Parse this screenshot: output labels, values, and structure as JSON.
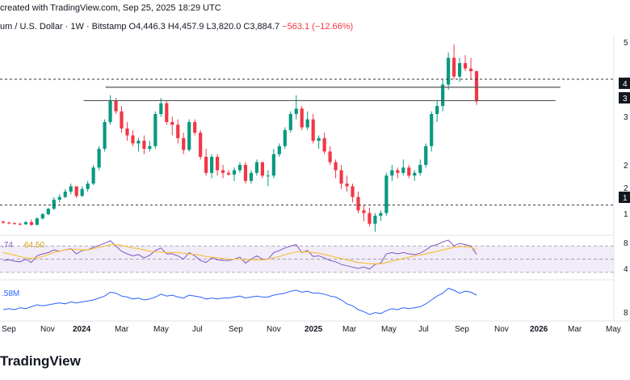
{
  "header": {
    "created_text": "created with TradingView.com, Sep 25, 2025 18:29 UTC"
  },
  "symbol": {
    "name": "um / U.S. Dollar · 1W · Bitstamp",
    "ohlc_prefix": "O4,446.3 H4,457.9 L3,820.0 C3,884.7",
    "change": "−563.1 (−12.66%)"
  },
  "footer": {
    "logo_text": "TradingView"
  },
  "colors": {
    "up": "#089981",
    "down": "#f23645",
    "rsi_line": "#7e57c2",
    "rsi_ma": "#f7c245",
    "rsi_band": "#ede7f6",
    "obv_line": "#2962ff",
    "resistance": "#555555"
  },
  "price_axis": {
    "labels": [
      "5",
      "4",
      "3",
      "3",
      "2",
      "2",
      "1",
      "1"
    ]
  },
  "rsi_axis": {
    "labels": [
      "8",
      "4"
    ]
  },
  "obv_axis": {
    "labels": [
      "8"
    ]
  },
  "indicators": {
    "rsi_value": ".74",
    "rsi_ma_value": "64.50",
    "obv_value": ".58M"
  },
  "chart_data": {
    "type": "candlestick",
    "interval": "1W",
    "x_axis_labels": [
      "Sep",
      "Nov",
      "2024",
      "Mar",
      "May",
      "Jul",
      "Sep",
      "Nov",
      "2025",
      "Mar",
      "May",
      "Jul",
      "Sep",
      "Nov",
      "2026",
      "Mar",
      "May"
    ],
    "bold_labels": [
      "2024",
      "2025",
      "2026"
    ],
    "ylim": [
      1400,
      5100
    ],
    "candles": [
      [
        1640,
        1660,
        1600,
        1620
      ],
      [
        1620,
        1640,
        1590,
        1610
      ],
      [
        1610,
        1630,
        1580,
        1600
      ],
      [
        1600,
        1620,
        1570,
        1590
      ],
      [
        1590,
        1650,
        1580,
        1630
      ],
      [
        1630,
        1680,
        1560,
        1580
      ],
      [
        1580,
        1720,
        1570,
        1700
      ],
      [
        1700,
        1800,
        1680,
        1780
      ],
      [
        1780,
        1900,
        1760,
        1880
      ],
      [
        1880,
        2100,
        1860,
        2050
      ],
      [
        2050,
        2150,
        2000,
        2100
      ],
      [
        2100,
        2250,
        2080,
        2200
      ],
      [
        2200,
        2350,
        2150,
        2300
      ],
      [
        2300,
        2280,
        2080,
        2120
      ],
      [
        2120,
        2300,
        2100,
        2250
      ],
      [
        2250,
        2400,
        2200,
        2350
      ],
      [
        2350,
        2700,
        2320,
        2650
      ],
      [
        2650,
        3050,
        2600,
        3000
      ],
      [
        3000,
        3550,
        2950,
        3500
      ],
      [
        3500,
        4000,
        3450,
        3900
      ],
      [
        3900,
        3950,
        3650,
        3700
      ],
      [
        3700,
        3800,
        3300,
        3380
      ],
      [
        3380,
        3500,
        3150,
        3250
      ],
      [
        3250,
        3350,
        3050,
        3100
      ],
      [
        3100,
        3200,
        2950,
        3150
      ],
      [
        3150,
        3250,
        2900,
        3000
      ],
      [
        3000,
        3150,
        2950,
        3050
      ],
      [
        3050,
        3700,
        3000,
        3650
      ],
      [
        3650,
        3950,
        3600,
        3850
      ],
      [
        3850,
        3900,
        3450,
        3500
      ],
      [
        3500,
        3600,
        3250,
        3450
      ],
      [
        3450,
        3550,
        3100,
        3200
      ],
      [
        3200,
        3300,
        2900,
        2980
      ],
      [
        2980,
        3550,
        2950,
        3500
      ],
      [
        3500,
        3550,
        3250,
        3300
      ],
      [
        3300,
        3350,
        2800,
        2850
      ],
      [
        2850,
        3000,
        2500,
        2550
      ],
      [
        2550,
        2900,
        2450,
        2850
      ],
      [
        2850,
        2900,
        2500,
        2600
      ],
      [
        2600,
        2700,
        2450,
        2550
      ],
      [
        2550,
        2600,
        2500,
        2520
      ],
      [
        2520,
        2650,
        2400,
        2600
      ],
      [
        2600,
        2750,
        2550,
        2700
      ],
      [
        2700,
        2750,
        2350,
        2400
      ],
      [
        2400,
        2600,
        2350,
        2550
      ],
      [
        2550,
        2800,
        2500,
        2750
      ],
      [
        2750,
        2750,
        2450,
        2500
      ],
      [
        2500,
        2600,
        2300,
        2500
      ],
      [
        2500,
        3000,
        2450,
        2900
      ],
      [
        2900,
        3100,
        2850,
        3050
      ],
      [
        3050,
        3400,
        3000,
        3350
      ],
      [
        3350,
        3700,
        3300,
        3650
      ],
      [
        3650,
        4000,
        3550,
        3750
      ],
      [
        3750,
        3800,
        3350,
        3400
      ],
      [
        3400,
        3700,
        3350,
        3550
      ],
      [
        3550,
        3650,
        3100,
        3150
      ],
      [
        3150,
        3250,
        3000,
        3200
      ],
      [
        3200,
        3300,
        2900,
        2950
      ],
      [
        2950,
        3050,
        2700,
        2750
      ],
      [
        2750,
        2800,
        2450,
        2600
      ],
      [
        2600,
        2700,
        2250,
        2350
      ],
      [
        2350,
        2500,
        2200,
        2300
      ],
      [
        2300,
        2350,
        2000,
        2100
      ],
      [
        2100,
        2200,
        1800,
        1850
      ],
      [
        1850,
        1950,
        1650,
        1800
      ],
      [
        1800,
        1900,
        1550,
        1600
      ],
      [
        1600,
        1800,
        1450,
        1750
      ],
      [
        1750,
        1850,
        1650,
        1800
      ],
      [
        1800,
        2550,
        1750,
        2500
      ],
      [
        2500,
        2700,
        2400,
        2600
      ],
      [
        2600,
        2650,
        2450,
        2550
      ],
      [
        2550,
        2800,
        2500,
        2650
      ],
      [
        2650,
        2700,
        2450,
        2500
      ],
      [
        2500,
        2600,
        2400,
        2550
      ],
      [
        2550,
        2800,
        2500,
        2700
      ],
      [
        2700,
        3100,
        2650,
        3050
      ],
      [
        3050,
        3700,
        2950,
        3650
      ],
      [
        3650,
        3900,
        3500,
        3800
      ],
      [
        3800,
        4300,
        3700,
        4200
      ],
      [
        4200,
        4800,
        4100,
        4700
      ],
      [
        4700,
        4950,
        4300,
        4350
      ],
      [
        4350,
        4700,
        4250,
        4600
      ],
      [
        4600,
        4750,
        4450,
        4500
      ],
      [
        4500,
        4700,
        4300,
        4450
      ],
      [
        4450,
        4460,
        3820,
        3885
      ]
    ],
    "annotations": {
      "dashed_levels": [
        4300,
        1950
      ],
      "resistance_upper": {
        "from_index": 19,
        "to_index": 90,
        "value": 4150
      },
      "resistance_lower": {
        "from_index": 18,
        "to_index": 90,
        "value": 3900
      }
    },
    "rsi": {
      "values": [
        48,
        49,
        47,
        46,
        50,
        45,
        55,
        58,
        60,
        64,
        62,
        64,
        66,
        58,
        63,
        64,
        68,
        71,
        74,
        78,
        70,
        62,
        58,
        55,
        57,
        52,
        56,
        63,
        67,
        58,
        58,
        55,
        50,
        60,
        55,
        48,
        45,
        52,
        49,
        48,
        48,
        50,
        53,
        44,
        50,
        55,
        50,
        50,
        60,
        63,
        67,
        70,
        72,
        60,
        63,
        54,
        55,
        52,
        48,
        46,
        42,
        40,
        38,
        36,
        38,
        35,
        42,
        44,
        58,
        60,
        58,
        60,
        58,
        57,
        59,
        64,
        70,
        72,
        76,
        79,
        70,
        74,
        72,
        70,
        57
      ],
      "ma_values": [
        60,
        58,
        56,
        54,
        52,
        51,
        52,
        54,
        57,
        60,
        62,
        64,
        65,
        65,
        64,
        64,
        66,
        68,
        70,
        72,
        72,
        71,
        69,
        67,
        66,
        64,
        62,
        61,
        61,
        60,
        60,
        60,
        59,
        58,
        57,
        56,
        54,
        53,
        52,
        51,
        50,
        50,
        50,
        49,
        49,
        49,
        49,
        50,
        52,
        54,
        57,
        59,
        61,
        61,
        61,
        60,
        59,
        57,
        55,
        53,
        51,
        49,
        47,
        45,
        44,
        43,
        43,
        43,
        45,
        47,
        49,
        51,
        53,
        55,
        56,
        58,
        60,
        62,
        64,
        66,
        68,
        69,
        69,
        68,
        64
      ],
      "band_upper": 70,
      "band_lower": 30,
      "middle": 50
    },
    "obv": {
      "values": [
        30,
        31,
        30,
        32,
        31,
        33,
        35,
        34,
        35,
        36,
        37,
        36,
        38,
        37,
        38,
        39,
        40,
        42,
        44,
        48,
        47,
        44,
        43,
        41,
        42,
        40,
        41,
        43,
        46,
        44,
        45,
        43,
        42,
        45,
        44,
        43,
        41,
        42,
        41,
        42,
        42,
        43,
        44,
        42,
        43,
        44,
        43,
        43,
        45,
        46,
        47,
        49,
        50,
        48,
        49,
        47,
        47,
        46,
        44,
        43,
        40,
        36,
        34,
        30,
        28,
        25,
        27,
        26,
        29,
        31,
        30,
        32,
        31,
        32,
        33,
        36,
        40,
        44,
        47,
        52,
        50,
        47,
        49,
        48,
        45
      ],
      "ylim": [
        20,
        60
      ]
    }
  }
}
